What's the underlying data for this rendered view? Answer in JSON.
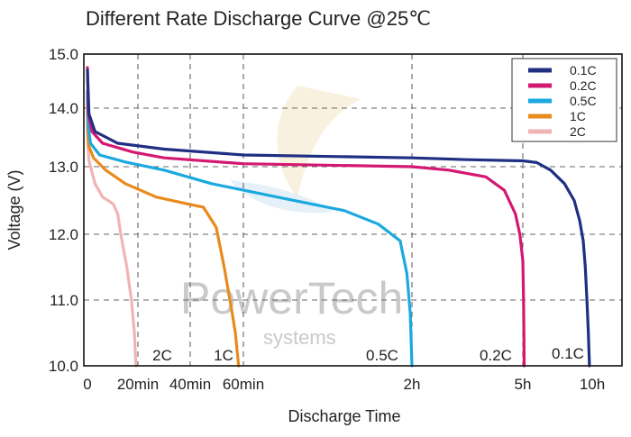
{
  "chart_data": {
    "type": "line",
    "title": "Different Rate Discharge Curve @25℃",
    "xlabel": "Discharge Time",
    "ylabel": "Voltage (V)",
    "ylim": [
      10.0,
      15.0
    ],
    "y_ticks": [
      "10.0",
      "11.0",
      "12.0",
      "13.0",
      "14.0",
      "15.0"
    ],
    "x_ticks": [
      "0",
      "20min",
      "40min",
      "60min",
      "2h",
      "5h",
      "10h"
    ],
    "grid": true,
    "legend_position": "top-right",
    "watermark": [
      "PowerTech",
      "systems"
    ],
    "series": [
      {
        "name": "0.1C",
        "color": "#1f2f82",
        "end_label": "0.1C",
        "points": [
          [
            0,
            14.7
          ],
          [
            0.01,
            13.9
          ],
          [
            0.05,
            13.6
          ],
          [
            0.2,
            13.4
          ],
          [
            0.5,
            13.3
          ],
          [
            1,
            13.2
          ],
          [
            2,
            13.15
          ],
          [
            3.5,
            13.12
          ],
          [
            5,
            13.1
          ],
          [
            6,
            13.07
          ],
          [
            7,
            12.95
          ],
          [
            8,
            12.75
          ],
          [
            8.7,
            12.5
          ],
          [
            9.1,
            12.2
          ],
          [
            9.35,
            11.9
          ],
          [
            9.5,
            11.5
          ],
          [
            9.62,
            11.0
          ],
          [
            9.72,
            10.5
          ],
          [
            9.8,
            10.0
          ]
        ]
      },
      {
        "name": "0.2C",
        "color": "#d41872",
        "end_label": "0.2C",
        "points": [
          [
            0,
            14.75
          ],
          [
            0.006,
            13.9
          ],
          [
            0.03,
            13.6
          ],
          [
            0.1,
            13.4
          ],
          [
            0.3,
            13.25
          ],
          [
            0.5,
            13.15
          ],
          [
            1,
            13.05
          ],
          [
            2,
            13.0
          ],
          [
            3,
            12.95
          ],
          [
            4,
            12.85
          ],
          [
            4.5,
            12.65
          ],
          [
            4.8,
            12.3
          ],
          [
            4.92,
            12.0
          ],
          [
            5.0,
            11.6
          ],
          [
            5.05,
            11.0
          ],
          [
            5.08,
            10.5
          ],
          [
            5.1,
            10.0
          ]
        ]
      },
      {
        "name": "0.5C",
        "color": "#1ba9df",
        "end_label": "0.5C",
        "points": [
          [
            0,
            14.3
          ],
          [
            0.005,
            13.7
          ],
          [
            0.02,
            13.4
          ],
          [
            0.08,
            13.2
          ],
          [
            0.25,
            13.08
          ],
          [
            0.5,
            12.95
          ],
          [
            0.8,
            12.75
          ],
          [
            1.2,
            12.55
          ],
          [
            1.6,
            12.35
          ],
          [
            1.8,
            12.15
          ],
          [
            1.93,
            11.9
          ],
          [
            1.97,
            11.4
          ],
          [
            1.99,
            10.8
          ],
          [
            2.0,
            10.0
          ]
        ]
      },
      {
        "name": "1C",
        "color": "#e98a1d",
        "end_label": "1C",
        "points": [
          [
            0,
            14.2
          ],
          [
            0.002,
            13.6
          ],
          [
            0.01,
            13.35
          ],
          [
            0.04,
            13.15
          ],
          [
            0.12,
            12.95
          ],
          [
            0.25,
            12.75
          ],
          [
            0.45,
            12.55
          ],
          [
            0.65,
            12.45
          ],
          [
            0.75,
            12.4
          ],
          [
            0.83,
            12.1
          ],
          [
            0.88,
            11.5
          ],
          [
            0.93,
            10.8
          ],
          [
            0.95,
            10.5
          ],
          [
            0.97,
            10.0
          ]
        ]
      },
      {
        "name": "2C",
        "color": "#f2b3b4",
        "end_label": "2C",
        "points": [
          [
            0,
            14.1
          ],
          [
            0.002,
            13.4
          ],
          [
            0.01,
            13.1
          ],
          [
            0.05,
            12.75
          ],
          [
            0.1,
            12.55
          ],
          [
            0.17,
            12.45
          ],
          [
            0.2,
            12.3
          ],
          [
            0.22,
            12.0
          ],
          [
            0.26,
            11.5
          ],
          [
            0.29,
            11.0
          ],
          [
            0.31,
            10.5
          ],
          [
            0.32,
            10.0
          ]
        ]
      }
    ]
  }
}
